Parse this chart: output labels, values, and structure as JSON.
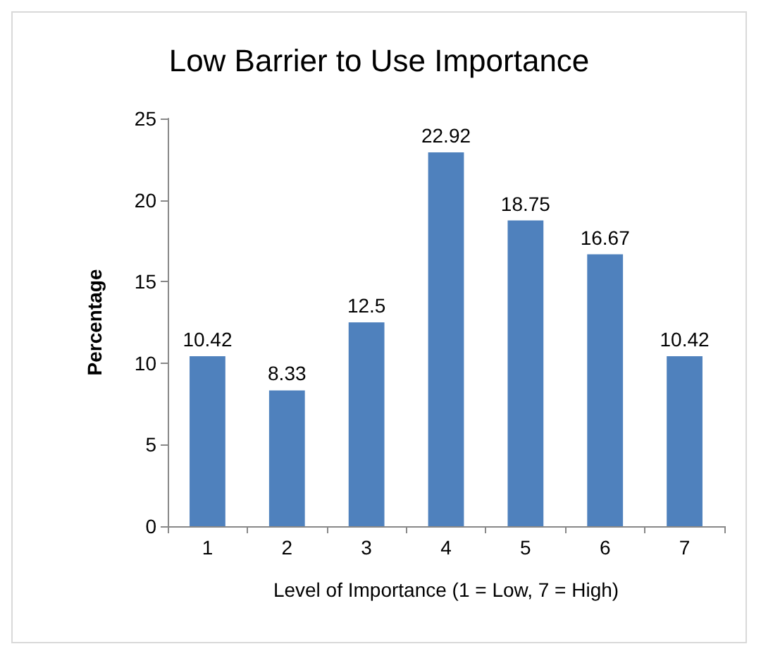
{
  "chart_data": {
    "type": "bar",
    "title": "Low Barrier to Use Importance",
    "xlabel": "Level of Importance (1 = Low, 7 = High)",
    "ylabel": "Percentage",
    "categories": [
      "1",
      "2",
      "3",
      "4",
      "5",
      "6",
      "7"
    ],
    "values": [
      10.42,
      8.33,
      12.5,
      22.92,
      18.75,
      16.67,
      10.42
    ],
    "color": "#4f81bd",
    "ylim": [
      0,
      25
    ],
    "yticks": [
      0,
      5,
      10,
      15,
      20,
      25
    ],
    "grid": false,
    "data_labels": true
  }
}
